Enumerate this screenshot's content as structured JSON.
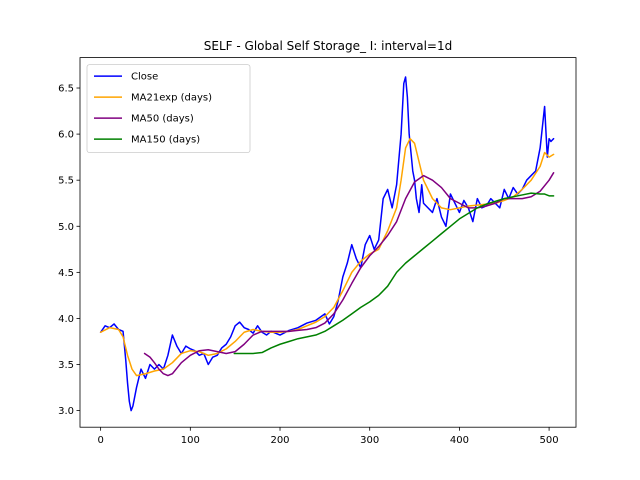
{
  "chart_data": {
    "type": "line",
    "title": "SELF - Global Self Storage_ I: interval=1d",
    "xlabel": "",
    "ylabel": "",
    "xlim": [
      -23,
      530
    ],
    "ylim": [
      2.82,
      6.83
    ],
    "xticks": [
      0,
      100,
      200,
      300,
      400,
      500
    ],
    "yticks": [
      3.0,
      3.5,
      4.0,
      4.5,
      5.0,
      5.5,
      6.0,
      6.5
    ],
    "xtick_labels": [
      "0",
      "100",
      "200",
      "300",
      "400",
      "500"
    ],
    "ytick_labels": [
      "3.0",
      "3.5",
      "4.0",
      "4.5",
      "5.0",
      "5.5",
      "6.0",
      "6.5"
    ],
    "legend_position": "top-left",
    "grid": false,
    "series": [
      {
        "name": "Close",
        "color": "#0000ff",
        "x": [
          0,
          5,
          10,
          15,
          20,
          25,
          28,
          30,
          32,
          34,
          36,
          40,
          45,
          50,
          55,
          60,
          65,
          70,
          75,
          80,
          85,
          90,
          95,
          100,
          105,
          110,
          115,
          120,
          125,
          130,
          135,
          140,
          145,
          150,
          155,
          160,
          165,
          170,
          175,
          180,
          185,
          190,
          200,
          210,
          220,
          230,
          240,
          250,
          255,
          260,
          265,
          270,
          275,
          280,
          285,
          290,
          295,
          300,
          305,
          310,
          315,
          320,
          325,
          330,
          335,
          338,
          340,
          342,
          344,
          346,
          348,
          350,
          352,
          355,
          358,
          360,
          365,
          370,
          375,
          380,
          385,
          390,
          395,
          400,
          405,
          410,
          415,
          420,
          425,
          430,
          435,
          440,
          445,
          450,
          455,
          460,
          465,
          470,
          475,
          480,
          485,
          490,
          495,
          498,
          500,
          502,
          505
        ],
        "y": [
          3.85,
          3.92,
          3.9,
          3.94,
          3.88,
          3.86,
          3.55,
          3.3,
          3.1,
          3.0,
          3.05,
          3.25,
          3.45,
          3.35,
          3.5,
          3.45,
          3.5,
          3.45,
          3.6,
          3.82,
          3.7,
          3.62,
          3.7,
          3.67,
          3.65,
          3.6,
          3.62,
          3.5,
          3.58,
          3.6,
          3.68,
          3.72,
          3.8,
          3.92,
          3.96,
          3.9,
          3.88,
          3.84,
          3.92,
          3.85,
          3.82,
          3.86,
          3.82,
          3.87,
          3.9,
          3.95,
          3.98,
          4.05,
          3.94,
          4.02,
          4.2,
          4.45,
          4.6,
          4.8,
          4.65,
          4.55,
          4.8,
          4.9,
          4.75,
          4.85,
          5.3,
          5.4,
          5.2,
          5.45,
          6.0,
          6.55,
          6.62,
          6.4,
          6.0,
          5.8,
          5.6,
          5.5,
          5.3,
          5.15,
          5.45,
          5.25,
          5.2,
          5.15,
          5.3,
          5.1,
          5.0,
          5.35,
          5.25,
          5.15,
          5.28,
          5.2,
          5.05,
          5.3,
          5.2,
          5.22,
          5.3,
          5.25,
          5.2,
          5.4,
          5.3,
          5.42,
          5.35,
          5.4,
          5.5,
          5.55,
          5.6,
          5.85,
          6.3,
          5.75,
          5.95,
          5.92,
          5.95
        ]
      },
      {
        "name": "MA21exp (days)",
        "color": "#ffa500",
        "x": [
          0,
          10,
          20,
          25,
          30,
          35,
          40,
          50,
          60,
          70,
          80,
          90,
          100,
          110,
          120,
          130,
          140,
          150,
          160,
          170,
          180,
          190,
          200,
          210,
          220,
          230,
          240,
          250,
          260,
          270,
          280,
          290,
          300,
          310,
          320,
          330,
          335,
          340,
          345,
          350,
          355,
          360,
          370,
          380,
          390,
          400,
          410,
          420,
          430,
          440,
          450,
          460,
          470,
          480,
          490,
          495,
          500,
          505
        ],
        "y": [
          3.85,
          3.9,
          3.88,
          3.8,
          3.6,
          3.45,
          3.38,
          3.4,
          3.43,
          3.45,
          3.52,
          3.62,
          3.65,
          3.64,
          3.6,
          3.62,
          3.67,
          3.75,
          3.85,
          3.88,
          3.86,
          3.85,
          3.85,
          3.86,
          3.88,
          3.92,
          3.96,
          4.02,
          4.12,
          4.3,
          4.5,
          4.62,
          4.7,
          4.75,
          4.95,
          5.2,
          5.5,
          5.85,
          5.95,
          5.9,
          5.7,
          5.5,
          5.3,
          5.2,
          5.18,
          5.2,
          5.22,
          5.23,
          5.24,
          5.25,
          5.28,
          5.32,
          5.4,
          5.5,
          5.65,
          5.8,
          5.75,
          5.78
        ]
      },
      {
        "name": "MA50 (days)",
        "color": "#800080",
        "x": [
          49,
          55,
          60,
          65,
          70,
          75,
          80,
          90,
          100,
          110,
          120,
          130,
          140,
          150,
          160,
          170,
          180,
          190,
          200,
          210,
          220,
          230,
          240,
          250,
          260,
          270,
          280,
          290,
          300,
          310,
          320,
          330,
          340,
          350,
          360,
          370,
          380,
          390,
          400,
          410,
          420,
          430,
          440,
          450,
          460,
          470,
          480,
          490,
          500,
          505
        ],
        "y": [
          3.62,
          3.58,
          3.52,
          3.45,
          3.4,
          3.38,
          3.4,
          3.52,
          3.6,
          3.65,
          3.66,
          3.64,
          3.62,
          3.64,
          3.72,
          3.82,
          3.86,
          3.86,
          3.86,
          3.86,
          3.87,
          3.88,
          3.9,
          3.95,
          4.05,
          4.2,
          4.38,
          4.55,
          4.68,
          4.78,
          4.9,
          5.05,
          5.3,
          5.48,
          5.55,
          5.5,
          5.42,
          5.3,
          5.25,
          5.2,
          5.2,
          5.22,
          5.25,
          5.3,
          5.3,
          5.3,
          5.32,
          5.38,
          5.5,
          5.58
        ]
      },
      {
        "name": "MA150 (days)",
        "color": "#008000",
        "x": [
          149,
          160,
          170,
          180,
          190,
          200,
          210,
          220,
          230,
          240,
          250,
          260,
          270,
          280,
          290,
          300,
          310,
          320,
          330,
          340,
          350,
          360,
          370,
          380,
          390,
          400,
          410,
          420,
          430,
          440,
          450,
          460,
          470,
          480,
          490,
          495,
          500,
          505
        ],
        "y": [
          3.62,
          3.62,
          3.62,
          3.63,
          3.68,
          3.72,
          3.75,
          3.78,
          3.8,
          3.82,
          3.86,
          3.92,
          3.98,
          4.05,
          4.12,
          4.18,
          4.25,
          4.35,
          4.5,
          4.6,
          4.68,
          4.76,
          4.84,
          4.92,
          5.0,
          5.08,
          5.14,
          5.2,
          5.24,
          5.27,
          5.3,
          5.32,
          5.34,
          5.36,
          5.35,
          5.35,
          5.33,
          5.33
        ]
      }
    ]
  }
}
